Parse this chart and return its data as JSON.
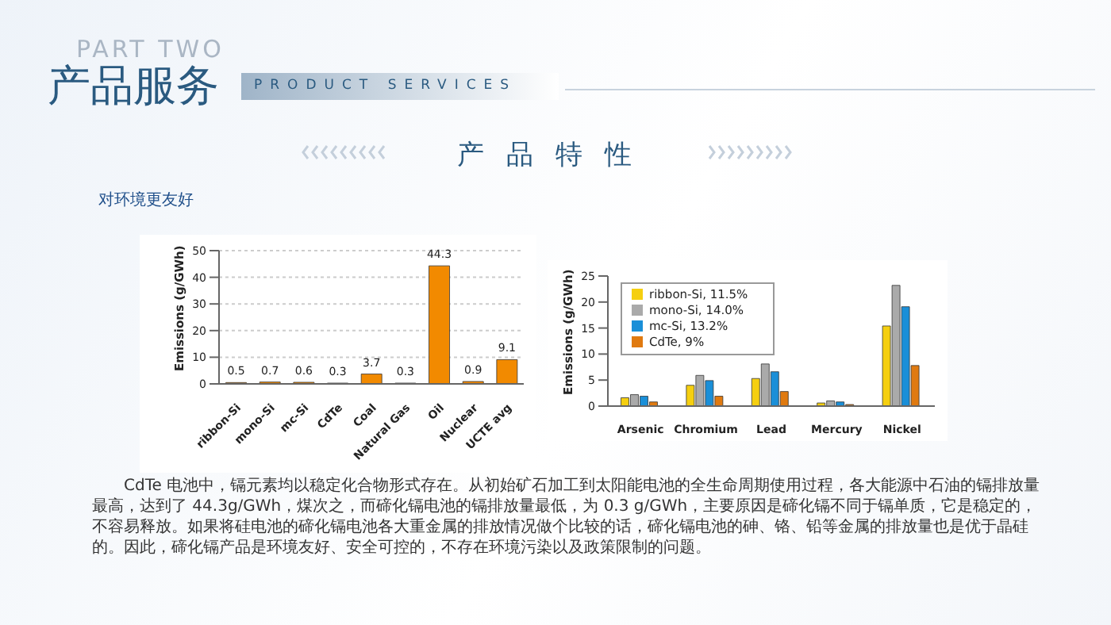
{
  "chart_data": [
    {
      "type": "bar",
      "title": "产品特性",
      "subtitle": "对环境更友好",
      "annotations": [
        "PART TWO",
        "产品服务",
        "PRODUCT SERVICES",
        "CdTe 电池中，镉元素均以稳定化合物形式存在。从初始矿石加工到太阳能电池的全生命周期使用过程，各大能源中石油的镉排放量最高，达到了 44.3g/GWh，煤次之，而碲化镉电池的镉排放量最低，为 0.3 g/GWh，主要原因是碲化镉不同于镉单质，它是稳定的，不容易释放。如果将硅电池的碲化镉电池各大重金属的排放情况做个比较的话，碲化镉电池的砷、铬、铅等金属的排放量也是优于晶硅的。因此，碲化镉产品是环境友好、安全可控的，不存在环境污染以及政策限制的问题。"
      ],
      "categories": [
        "ribbon-Si",
        "mono-Si",
        "mc-Si",
        "CdTe",
        "Coal",
        "Natural Gas",
        "Oil",
        "Nuclear",
        "UCTE avg"
      ],
      "values": [
        0.5,
        0.7,
        0.6,
        0.3,
        3.7,
        0.3,
        44.3,
        0.9,
        9.1
      ],
      "color": "#f28a00",
      "data_labels": true,
      "ylabel": "Emissions (g/GWh)",
      "ylim": [
        0,
        50
      ],
      "yticks": [
        0,
        10,
        20,
        30,
        40,
        50
      ],
      "grid": "y"
    },
    {
      "type": "bar",
      "categories": [
        "Arsenic",
        "Chromium",
        "Lead",
        "Mercury",
        "Nickel"
      ],
      "series": [
        {
          "name": "ribbon-Si, 11.5%",
          "color": "#f5cf10",
          "values": [
            1.6,
            4.0,
            5.3,
            0.6,
            15.4
          ]
        },
        {
          "name": "mono-Si, 14.0%",
          "color": "#aaaaaa",
          "values": [
            2.2,
            5.9,
            8.1,
            1.0,
            23.2
          ]
        },
        {
          "name": "mc-Si, 13.2%",
          "color": "#1a8fd8",
          "values": [
            1.9,
            4.9,
            6.6,
            0.8,
            19.1
          ]
        },
        {
          "name": "CdTe, 9%",
          "color": "#e07a10",
          "values": [
            0.8,
            1.9,
            2.8,
            0.3,
            7.8
          ]
        }
      ],
      "ylabel": "Emissions (g/GWh)",
      "ylim": [
        0,
        25
      ],
      "yticks": [
        0,
        5,
        10,
        15,
        20,
        25
      ],
      "legend": "top left"
    }
  ]
}
